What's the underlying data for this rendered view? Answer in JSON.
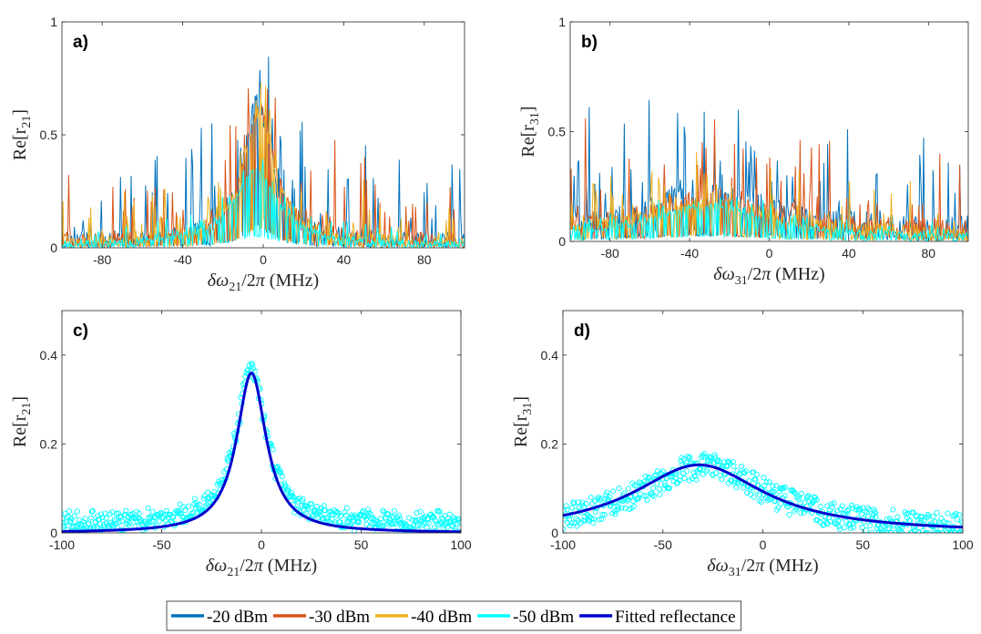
{
  "legend": {
    "entries": [
      {
        "label": "-20 dBm",
        "color": "#0072BD"
      },
      {
        "label": "-30 dBm",
        "color": "#D95319"
      },
      {
        "label": "-40 dBm",
        "color": "#EDB120"
      },
      {
        "label": "-50 dBm",
        "color": "#00FFFF"
      },
      {
        "label": "Fitted reflectance",
        "color": "#0000CD"
      }
    ]
  },
  "chart_data": [
    {
      "id": "a",
      "panel_label": "a)",
      "type": "line",
      "xlabel": "δω21/2π (MHz)",
      "ylabel": "Re[r21]",
      "xlim": [
        -100,
        100
      ],
      "ylim": [
        0,
        1
      ],
      "xticks": [
        -80,
        -40,
        0,
        40,
        80
      ],
      "yticks": [
        0,
        0.5,
        1
      ],
      "ytick_labels": [
        "0",
        "0.5",
        "1"
      ],
      "series": [
        {
          "name": "-20 dBm",
          "color": "#0072BD",
          "center": -3,
          "peak": 0.62,
          "width": 8,
          "noise": 0.09,
          "spike": 0.55
        },
        {
          "name": "-30 dBm",
          "color": "#D95319",
          "center": -2,
          "peak": 0.58,
          "width": 9,
          "noise": 0.08,
          "spike": 0.45
        },
        {
          "name": "-40 dBm",
          "color": "#EDB120",
          "center": -2,
          "peak": 0.55,
          "width": 10,
          "noise": 0.06,
          "spike": 0.3
        },
        {
          "name": "-50 dBm",
          "color": "#00FFFF",
          "center": -4,
          "peak": 0.33,
          "width": 13,
          "noise": 0.035,
          "spike": 0.1
        }
      ]
    },
    {
      "id": "b",
      "panel_label": "b)",
      "type": "line",
      "xlabel": "δω31/2π (MHz)",
      "ylabel": "Re[r31]",
      "xlim": [
        -100,
        100
      ],
      "ylim": [
        0,
        1
      ],
      "xticks": [
        -80,
        -40,
        0,
        40,
        80
      ],
      "yticks": [
        0,
        0.5,
        1
      ],
      "ytick_labels": [
        "0",
        "0.5",
        "1"
      ],
      "series": [
        {
          "name": "-20 dBm",
          "color": "#0072BD",
          "center": -30,
          "peak": 0.16,
          "width": 40,
          "noise": 0.13,
          "spike": 0.55
        },
        {
          "name": "-30 dBm",
          "color": "#D95319",
          "center": -30,
          "peak": 0.15,
          "width": 40,
          "noise": 0.11,
          "spike": 0.45
        },
        {
          "name": "-40 dBm",
          "color": "#EDB120",
          "center": -30,
          "peak": 0.14,
          "width": 40,
          "noise": 0.08,
          "spike": 0.3
        },
        {
          "name": "-50 dBm",
          "color": "#00FFFF",
          "center": -30,
          "peak": 0.15,
          "width": 35,
          "noise": 0.035,
          "spike": 0.08
        }
      ]
    },
    {
      "id": "c",
      "panel_label": "c)",
      "type": "scatter",
      "xlabel": "δω21/2π (MHz)",
      "ylabel": "Re[r21]",
      "xlim": [
        -100,
        100
      ],
      "ylim": [
        0,
        0.5
      ],
      "xticks": [
        -100,
        -50,
        0,
        50,
        100
      ],
      "yticks": [
        0,
        0.2,
        0.4
      ],
      "ytick_labels": [
        "0",
        "0.2",
        "0.4"
      ],
      "scatter": {
        "name": "-50 dBm",
        "color": "#00FFFF",
        "center": -5,
        "peak": 0.355,
        "width": 9,
        "baseline": 0.02,
        "noise": 0.018
      },
      "fit": {
        "name": "Fitted reflectance",
        "color": "#0000CD",
        "center": -5,
        "peak": 0.36,
        "width": 9,
        "baseline": 0.0
      }
    },
    {
      "id": "d",
      "panel_label": "d)",
      "type": "scatter",
      "xlabel": "δω31/2π (MHz)",
      "ylabel": "Re[r31]",
      "xlim": [
        -100,
        100
      ],
      "ylim": [
        0,
        0.5
      ],
      "xticks": [
        -100,
        -50,
        0,
        50,
        100
      ],
      "yticks": [
        0,
        0.2,
        0.4
      ],
      "ytick_labels": [
        "0",
        "0.2",
        "0.4"
      ],
      "scatter": {
        "name": "-50 dBm",
        "color": "#00FFFF",
        "center": -30,
        "peak": 0.15,
        "width": 40,
        "baseline": 0.0,
        "noise": 0.03
      },
      "fit": {
        "name": "Fitted reflectance",
        "color": "#0000CD",
        "center": -32,
        "peak": 0.153,
        "width": 40,
        "baseline": 0.0
      }
    }
  ]
}
